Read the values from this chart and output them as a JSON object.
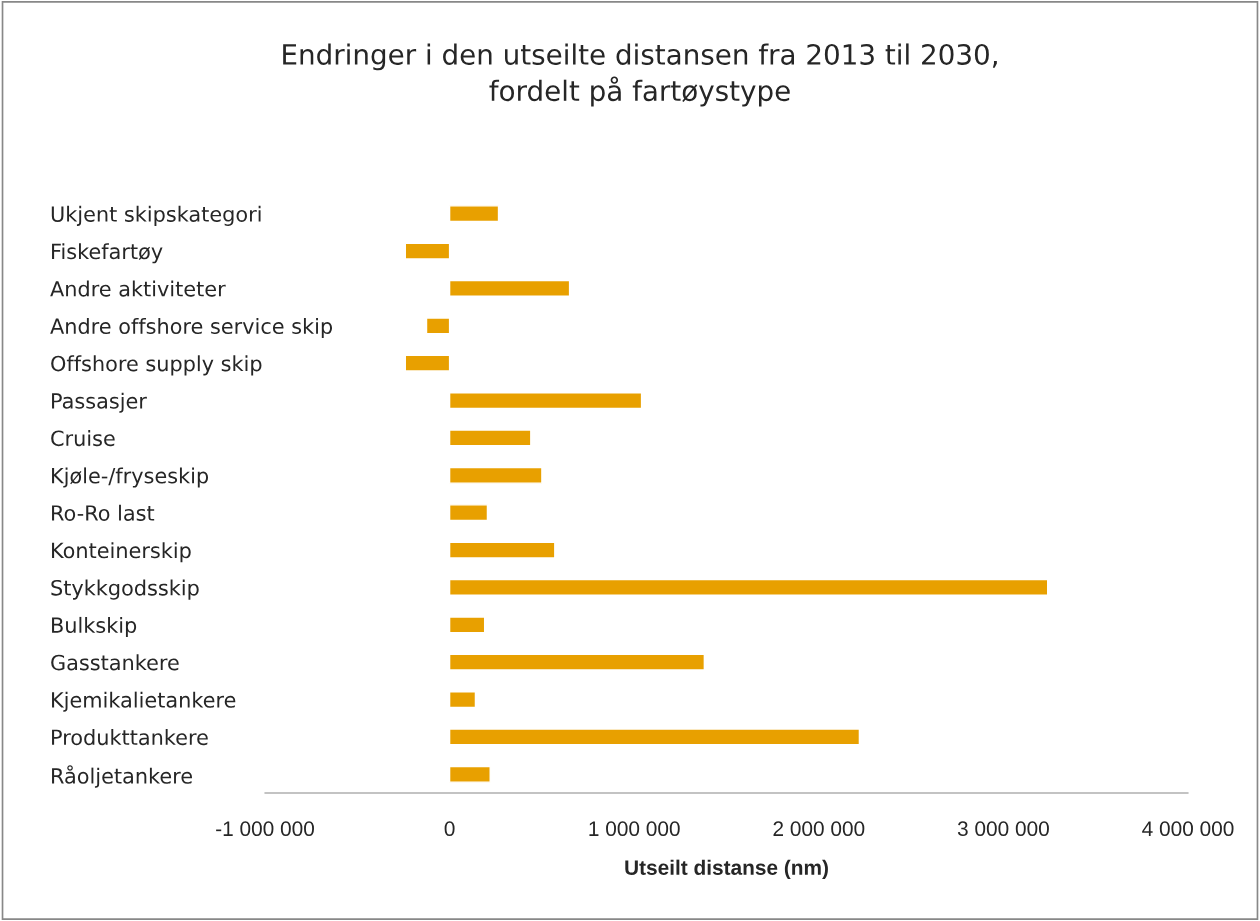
{
  "chart_data": {
    "type": "bar",
    "orientation": "horizontal",
    "title": "Endringer i den utseilte distansen fra 2013 til 2030,\nfordelt på fartøystype",
    "xlabel": "Utseilt distanse (nm)",
    "categories": [
      "Ukjent skipskategori",
      "Fiskefartøy",
      "Andre aktiviteter",
      "Andre offshore service skip",
      "Offshore supply skip",
      "Passasjer",
      "Cruise",
      "Kjøle-/fryseskip",
      "Ro-Ro last",
      "Konteinerskip",
      "Stykkgodsskip",
      "Bulkskip",
      "Gasstankere",
      "Kjemikalietankere",
      "Produkttankere",
      "Råoljetankere"
    ],
    "values": [
      265000,
      -240000,
      650000,
      -125000,
      -240000,
      1040000,
      440000,
      500000,
      205000,
      570000,
      3240000,
      190000,
      1380000,
      140000,
      2220000,
      220000
    ],
    "color": "#e8a000",
    "xlim": [
      -1000000,
      4000000
    ],
    "xticks": [
      {
        "value": -1000000,
        "label": "-1 000 000"
      },
      0,
      {
        "value": 1000000,
        "label": "1 000 000"
      },
      {
        "value": 2000000,
        "label": "2 000 000"
      },
      {
        "value": 3000000,
        "label": "3 000 000"
      },
      {
        "value": 4000000,
        "label": "4 000 000"
      }
    ],
    "grid": false,
    "legend": false
  }
}
